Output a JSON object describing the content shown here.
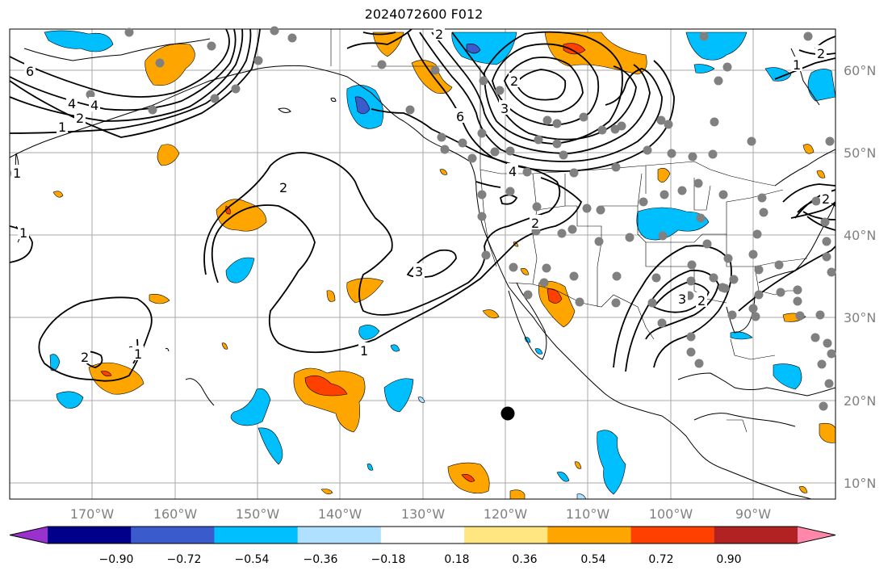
{
  "title": "2024072600 F012",
  "lat_labels": [
    "60°N",
    "50°N",
    "40°N",
    "30°N",
    "20°N",
    "10°N"
  ],
  "lon_labels": [
    "170°W",
    "160°W",
    "150°W",
    "140°W",
    "130°W",
    "120°W",
    "110°W",
    "100°W",
    "90°W"
  ],
  "colorbar": {
    "colors": [
      "#9932cc",
      "#00008b",
      "#3a5bcb",
      "#00bfff",
      "#b0e0ff",
      "#ffffff",
      "#ffe680",
      "#ffa500",
      "#ff4000",
      "#b22222",
      "#ff88aa"
    ],
    "tick_labels": [
      "−0.90",
      "−0.72",
      "−0.54",
      "−0.36",
      "−0.18",
      "0.18",
      "0.36",
      "0.54",
      "0.72",
      "0.90"
    ]
  },
  "contour_labels": [
    "6",
    "4",
    "2",
    "1",
    "2",
    "6",
    "4",
    "2",
    "1",
    "3",
    "2",
    "4",
    "1",
    "2",
    "3",
    "2",
    "3",
    "2",
    "2",
    "1",
    "1",
    "1",
    "2"
  ]
}
